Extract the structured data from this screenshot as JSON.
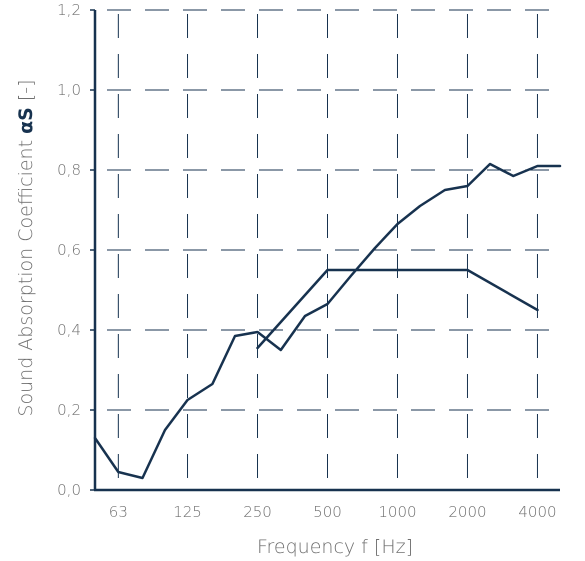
{
  "chart_data": {
    "type": "line",
    "title": "",
    "xlabel": "Frequency f [Hz]",
    "ylabel_prefix": "Sound Absorption Coefficient ",
    "ylabel_symbol": "αS",
    "ylabel_suffix": " [-]",
    "x_scale": "log",
    "x_ticks": [
      "63",
      "125",
      "250",
      "500",
      "1000",
      "2000",
      "4000"
    ],
    "x_tick_values": [
      63,
      125,
      250,
      500,
      1000,
      2000,
      4000
    ],
    "y_ticks": [
      "0,0",
      "0,2",
      "0,4",
      "0,6",
      "0,8",
      "1,0",
      "1,2"
    ],
    "y_tick_values": [
      0,
      0.2,
      0.4,
      0.6,
      0.8,
      1.0,
      1.2
    ],
    "ylim": [
      0,
      1.2
    ],
    "xlim": [
      50,
      5000
    ],
    "grid": "dashed",
    "line_color": "#17324f",
    "series": [
      {
        "x": [
          50,
          63,
          80,
          100,
          125,
          160,
          200,
          250,
          315,
          400,
          500,
          630,
          800,
          1000,
          1250,
          1600,
          2000,
          2500,
          3150,
          4000,
          5000
        ],
        "values": [
          0.13,
          0.045,
          0.03,
          0.15,
          0.225,
          0.265,
          0.385,
          0.395,
          0.35,
          0.435,
          0.465,
          0.535,
          0.605,
          0.665,
          0.71,
          0.75,
          0.76,
          0.815,
          0.785,
          0.81,
          0.81
        ]
      },
      {
        "x": [
          250,
          500,
          2000,
          4000
        ],
        "values": [
          0.355,
          0.55,
          0.55,
          0.45
        ]
      }
    ]
  }
}
